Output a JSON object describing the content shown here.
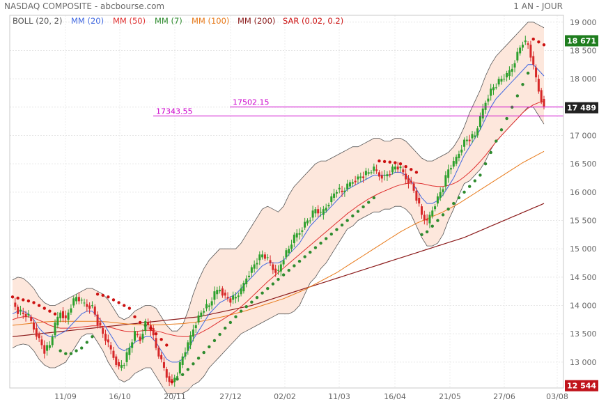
{
  "header": {
    "title": "NASDAQ COMPOSITE - abcbourse.com",
    "period": "1 AN - JOUR"
  },
  "indicators": [
    {
      "label": "BOLL (20, 2)",
      "color": "#555555"
    },
    {
      "label": "MM (20)",
      "color": "#4169e1"
    },
    {
      "label": "MM (50)",
      "color": "#e03030"
    },
    {
      "label": "MM (7)",
      "color": "#2e8b2e"
    },
    {
      "label": "MM (100)",
      "color": "#e87a1a"
    },
    {
      "label": "MM (200)",
      "color": "#8b1a1a"
    },
    {
      "label": "SAR (0.02, 0.2)",
      "color": "#cc1111"
    }
  ],
  "price_tags": {
    "high": "18 671",
    "last": "17 489",
    "low": "12 544"
  },
  "levels": [
    {
      "label": "17502.15",
      "value": 17502.15
    },
    {
      "label": "17343.55",
      "value": 17343.55
    }
  ],
  "colors": {
    "up": "#2ca02c",
    "down": "#d62728",
    "band_fill": "#fde7dc",
    "level_line": "#cc00cc",
    "tag_green": "#1e7d1e",
    "tag_red": "#c0141c"
  },
  "chart_data": {
    "type": "candlestick",
    "x_tick_labels": [
      "11/09",
      "16/10",
      "20/11",
      "27/12",
      "02/02",
      "11/03",
      "16/04",
      "21/05",
      "27/06",
      "03/08"
    ],
    "y_ticks": [
      13000,
      13500,
      14000,
      14500,
      15000,
      15500,
      16000,
      16500,
      17000,
      17500,
      18000,
      18500,
      19000
    ],
    "y_tick_labels": [
      "13 000",
      "13 500",
      "14 000",
      "14 500",
      "15 000",
      "15 500",
      "16 000",
      "16 500",
      "17 000",
      "17 500",
      "18 000",
      "18 500",
      "19 000"
    ],
    "ylim": [
      12544,
      19120
    ],
    "close": [
      14050,
      13900,
      13850,
      13800,
      13600,
      13400,
      13200,
      13300,
      13650,
      13900,
      13750,
      14000,
      14150,
      14050,
      14000,
      13980,
      13700,
      13500,
      13300,
      13100,
      12900,
      13000,
      13250,
      13500,
      13400,
      13700,
      13600,
      13250,
      13000,
      12750,
      12650,
      12800,
      13100,
      13300,
      13600,
      13800,
      13950,
      14000,
      14200,
      14300,
      14150,
      14100,
      14150,
      14250,
      14500,
      14650,
      14800,
      14900,
      14800,
      14650,
      14600,
      14850,
      15000,
      15200,
      15300,
      15450,
      15550,
      15700,
      15600,
      15750,
      15900,
      16050,
      16000,
      16100,
      16200,
      16250,
      16300,
      16350,
      16400,
      16300,
      16280,
      16350,
      16450,
      16400,
      16250,
      16150,
      15900,
      15600,
      15450,
      15700,
      15900,
      16100,
      16400,
      16500,
      16700,
      16900,
      16950,
      17000,
      17300,
      17600,
      17800,
      17900,
      18000,
      18050,
      18200,
      18450,
      18650,
      18600,
      18200,
      17800,
      17489
    ],
    "mm7": [
      14000,
      13950,
      13850,
      13750,
      13550,
      13350,
      13200,
      13250,
      13450,
      13650,
      13700,
      13800,
      13950,
      14000,
      13980,
      13900,
      13700,
      13500,
      13300,
      13150,
      13000,
      13050,
      13200,
      13400,
      13400,
      13500,
      13500,
      13300,
      13100,
      12850,
      12750,
      12800,
      13000,
      13200,
      13450,
      13650,
      13850,
      13950,
      14100,
      14200,
      14150,
      14150,
      14200,
      14300,
      14450,
      14600,
      14750,
      14850,
      14800,
      14700,
      14650,
      14800,
      14950,
      15100,
      15250,
      15400,
      15500,
      15600,
      15600,
      15700,
      15850,
      15950,
      16000,
      16050,
      16150,
      16200,
      16250,
      16300,
      16350,
      16300,
      16280,
      16320,
      16400,
      16380,
      16250,
      16100,
      15900,
      15700,
      15550,
      15650,
      15850,
      16050,
      16300,
      16450,
      16650,
      16850,
      16950,
      17000,
      17250,
      17500,
      17700,
      17850,
      17950,
      18000,
      18150,
      18350,
      18550,
      18500,
      18200,
      17900,
      17650
    ],
    "mm20": [
      13850,
      13900,
      13900,
      13850,
      13750,
      13600,
      13500,
      13450,
      13450,
      13500,
      13550,
      13650,
      13750,
      13850,
      13900,
      13900,
      13800,
      13700,
      13550,
      13400,
      13250,
      13200,
      13250,
      13350,
      13400,
      13450,
      13450,
      13350,
      13200,
      13050,
      13000,
      13000,
      13050,
      13200,
      13400,
      13550,
      13700,
      13850,
      13950,
      14050,
      14100,
      14150,
      14200,
      14300,
      14400,
      14500,
      14600,
      14700,
      14750,
      14750,
      14750,
      14800,
      14900,
      15000,
      15100,
      15250,
      15400,
      15500,
      15600,
      15650,
      15750,
      15850,
      15950,
      16050,
      16100,
      16150,
      16200,
      16250,
      16300,
      16300,
      16300,
      16300,
      16350,
      16350,
      16300,
      16200,
      16050,
      15900,
      15800,
      15800,
      15850,
      15950,
      16100,
      16250,
      16450,
      16650,
      16800,
      16950,
      17100,
      17300,
      17500,
      17650,
      17750,
      17850,
      17950,
      18050,
      18150,
      18250,
      18250,
      18150,
      18050
    ],
    "mm50": [
      13750,
      13780,
      13800,
      13800,
      13780,
      13740,
      13700,
      13650,
      13620,
      13600,
      13600,
      13600,
      13610,
      13620,
      13630,
      13640,
      13640,
      13630,
      13620,
      13600,
      13570,
      13550,
      13540,
      13540,
      13550,
      13560,
      13560,
      13550,
      13530,
      13500,
      13480,
      13460,
      13450,
      13450,
      13470,
      13500,
      13550,
      13600,
      13660,
      13720,
      13780,
      13840,
      13900,
      13980,
      14060,
      14150,
      14240,
      14330,
      14420,
      14500,
      14580,
      14660,
      14740,
      14820,
      14900,
      14980,
      15060,
      15140,
      15220,
      15300,
      15380,
      15460,
      15540,
      15620,
      15690,
      15760,
      15820,
      15880,
      15930,
      15980,
      16020,
      16060,
      16100,
      16130,
      16150,
      16160,
      16160,
      16150,
      16130,
      16110,
      16100,
      16100,
      16120,
      16150,
      16200,
      16270,
      16350,
      16440,
      16540,
      16650,
      16770,
      16890,
      17000,
      17100,
      17200,
      17300,
      17400,
      17480,
      17540,
      17580,
      17600
    ],
    "mm100": [
      13650,
      13660,
      13670,
      13680,
      13690,
      13700,
      13710,
      13715,
      13720,
      13720,
      13720,
      13720,
      13720,
      13720,
      13720,
      13720,
      13720,
      13715,
      13710,
      13700,
      13690,
      13680,
      13670,
      13665,
      13660,
      13660,
      13660,
      13660,
      13660,
      13665,
      13670,
      13675,
      13680,
      13690,
      13700,
      13715,
      13730,
      13750,
      13770,
      13790,
      13810,
      13835,
      13860,
      13885,
      13910,
      13940,
      13970,
      14000,
      14030,
      14060,
      14090,
      14120,
      14160,
      14200,
      14240,
      14280,
      14330,
      14380,
      14430,
      14480,
      14530,
      14580,
      14640,
      14700,
      14760,
      14820,
      14880,
      14940,
      15000,
      15060,
      15120,
      15180,
      15240,
      15300,
      15350,
      15400,
      15450,
      15490,
      15530,
      15570,
      15610,
      15650,
      15700,
      15750,
      15800,
      15860,
      15920,
      15980,
      16040,
      16100,
      16160,
      16220,
      16280,
      16340,
      16400,
      16460,
      16520,
      16570,
      16620,
      16670,
      16720
    ],
    "mm200": [
      13450,
      13460,
      13470,
      13480,
      13490,
      13500,
      13510,
      13520,
      13530,
      13540,
      13550,
      13560,
      13570,
      13580,
      13590,
      13600,
      13610,
      13620,
      13630,
      13640,
      13650,
      13660,
      13670,
      13680,
      13690,
      13700,
      13710,
      13720,
      13730,
      13740,
      13750,
      13760,
      13770,
      13780,
      13790,
      13800,
      13820,
      13840,
      13860,
      13880,
      13900,
      13920,
      13940,
      13960,
      13980,
      14000,
      14030,
      14060,
      14090,
      14120,
      14150,
      14180,
      14210,
      14240,
      14270,
      14300,
      14330,
      14360,
      14390,
      14420,
      14450,
      14480,
      14510,
      14540,
      14570,
      14600,
      14630,
      14660,
      14690,
      14720,
      14750,
      14780,
      14810,
      14840,
      14870,
      14900,
      14930,
      14960,
      14990,
      15020,
      15050,
      15080,
      15110,
      15140,
      15170,
      15200,
      15240,
      15280,
      15320,
      15360,
      15400,
      15440,
      15480,
      15520,
      15560,
      15600,
      15640,
      15680,
      15720,
      15760,
      15800
    ],
    "boll_upper": [
      14450,
      14500,
      14480,
      14400,
      14300,
      14150,
      14050,
      14000,
      14000,
      14050,
      14100,
      14150,
      14200,
      14250,
      14300,
      14300,
      14250,
      14200,
      14100,
      13950,
      13800,
      13750,
      13800,
      13900,
      13950,
      14000,
      14000,
      13950,
      13800,
      13650,
      13550,
      13550,
      13650,
      13900,
      14200,
      14450,
      14650,
      14800,
      14900,
      15000,
      15000,
      15000,
      15000,
      15100,
      15250,
      15400,
      15550,
      15700,
      15750,
      15700,
      15650,
      15750,
      15950,
      16100,
      16200,
      16300,
      16400,
      16500,
      16550,
      16550,
      16600,
      16650,
      16700,
      16750,
      16800,
      16800,
      16850,
      16900,
      16950,
      16950,
      16900,
      16900,
      16950,
      16950,
      16900,
      16800,
      16700,
      16600,
      16550,
      16550,
      16600,
      16650,
      16700,
      16800,
      16950,
      17150,
      17400,
      17600,
      17800,
      18050,
      18250,
      18400,
      18500,
      18600,
      18700,
      18800,
      18900,
      19000,
      19000,
      18950,
      18900
    ],
    "boll_lower": [
      13250,
      13300,
      13320,
      13300,
      13200,
      13050,
      12950,
      12900,
      12900,
      12950,
      13000,
      13150,
      13300,
      13450,
      13500,
      13500,
      13350,
      13200,
      13000,
      12850,
      12700,
      12650,
      12700,
      12800,
      12850,
      12900,
      12900,
      12750,
      12600,
      12450,
      12450,
      12450,
      12450,
      12500,
      12600,
      12650,
      12750,
      12900,
      13000,
      13100,
      13200,
      13300,
      13400,
      13500,
      13550,
      13600,
      13650,
      13700,
      13750,
      13800,
      13850,
      13850,
      13850,
      13900,
      14000,
      14200,
      14400,
      14500,
      14650,
      14750,
      14900,
      15050,
      15200,
      15350,
      15400,
      15500,
      15550,
      15600,
      15650,
      15650,
      15700,
      15700,
      15750,
      15750,
      15700,
      15600,
      15400,
      15200,
      15050,
      15050,
      15100,
      15250,
      15500,
      15700,
      15950,
      16150,
      16200,
      16300,
      16400,
      16550,
      16750,
      16900,
      17000,
      17100,
      17200,
      17300,
      17400,
      17500,
      17500,
      17350,
      17200
    ],
    "sar": [
      14150,
      14130,
      14100,
      14080,
      14050,
      14000,
      13950,
      13900,
      13850,
      13200,
      13150,
      13150,
      13200,
      13250,
      13350,
      13450,
      14200,
      14180,
      14150,
      14100,
      14050,
      14000,
      13950,
      13800,
      13700,
      13650,
      13600,
      13500,
      13400,
      13300,
      12650,
      12700,
      12780,
      12870,
      12970,
      13070,
      13170,
      13270,
      13380,
      13490,
      13600,
      13700,
      13800,
      13900,
      13980,
      14060,
      14140,
      14220,
      14300,
      14380,
      14460,
      14540,
      14620,
      14700,
      14780,
      14860,
      14940,
      15020,
      15100,
      15180,
      15260,
      15340,
      15420,
      15500,
      15580,
      15660,
      15740,
      15820,
      15900,
      16550,
      16540,
      16530,
      16520,
      16500,
      16450,
      16400,
      16350,
      15250,
      15300,
      15400,
      15500,
      15600,
      15700,
      15800,
      15900,
      16000,
      16100,
      16200,
      16300,
      16500,
      16700,
      16900,
      17100,
      17300,
      17500,
      17700,
      17900,
      18100,
      18700,
      18650,
      18600
    ],
    "levels": [
      17502.15,
      17343.55
    ]
  }
}
